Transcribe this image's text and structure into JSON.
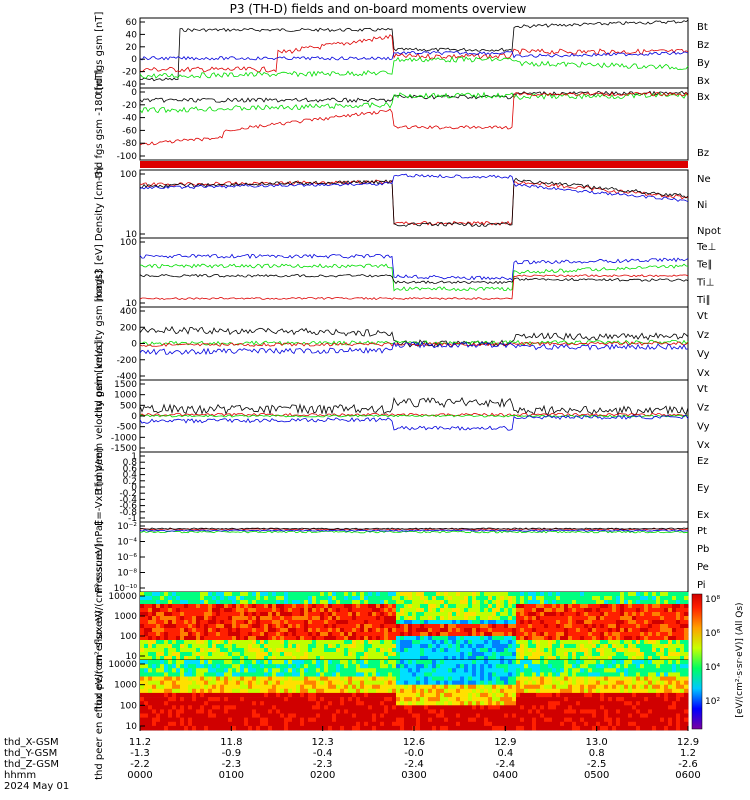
{
  "title": "P3 (TH-D) fields and on-board moments overview",
  "colors": {
    "black": "#000000",
    "red": "#dd0000",
    "green": "#00dd00",
    "blue": "#0000dd"
  },
  "chart_data": [
    {
      "type": "line",
      "ylabel": "thd fgs gsm [nT]",
      "ylim": [
        -50,
        60
      ],
      "yticks": [
        "60",
        "40",
        "20",
        "0",
        "-20",
        "-40"
      ],
      "series": [
        {
          "name": "Bt",
          "color": "black"
        },
        {
          "name": "Bz",
          "color": "red"
        },
        {
          "name": "By",
          "color": "green"
        },
        {
          "name": "Bx",
          "color": "blue"
        }
      ]
    },
    {
      "type": "line",
      "ylabel": "thd fgs gsm -180 [nT]",
      "ylim": [
        -110,
        5
      ],
      "yticks": [
        "0",
        "-20",
        "-40",
        "-60",
        "-80",
        "-100"
      ],
      "series": [
        {
          "name": "Bx",
          "color": "black"
        },
        {
          "name": "Bz",
          "color": "green"
        }
      ]
    },
    {
      "type": "line",
      "ylabel": "Density [cm-3]",
      "scale": "log",
      "yticks": [
        "100",
        "10"
      ],
      "series": [
        {
          "name": "Ne",
          "color": "red"
        },
        {
          "name": "Ni",
          "color": "black"
        },
        {
          "name": "Npot",
          "color": "blue"
        }
      ]
    },
    {
      "type": "line",
      "ylabel": "magt3 [eV]",
      "scale": "log",
      "yticks": [
        "100",
        "10"
      ],
      "series": [
        {
          "name": "Te⊥",
          "color": "red"
        },
        {
          "name": "Te∥",
          "color": "black"
        },
        {
          "name": "Ti⊥",
          "color": "blue"
        },
        {
          "name": "Ti∥",
          "color": "green"
        }
      ]
    },
    {
      "type": "line",
      "ylabel": "thd peim velocity gsm [km/s]",
      "ylim": [
        -400,
        400
      ],
      "yticks": [
        "400",
        "200",
        "0",
        "-200",
        "-400"
      ],
      "series": [
        {
          "name": "Vt",
          "color": "black"
        },
        {
          "name": "Vz",
          "color": "red"
        },
        {
          "name": "Vy",
          "color": "green"
        },
        {
          "name": "Vx",
          "color": "blue"
        }
      ]
    },
    {
      "type": "line",
      "ylabel": "thd peem velocity gsm [km/s]",
      "ylim": [
        -1500,
        1500
      ],
      "yticks": [
        "1500",
        "1000",
        "500",
        "0",
        "-500",
        "-1000",
        "-1500"
      ],
      "series": [
        {
          "name": "Vt",
          "color": "black"
        },
        {
          "name": "Vz",
          "color": "red"
        },
        {
          "name": "Vy",
          "color": "green"
        },
        {
          "name": "Vx",
          "color": "blue"
        }
      ]
    },
    {
      "type": "line",
      "ylabel": "E=-VxB [mV/m]",
      "ylim": [
        -1,
        1
      ],
      "yticks": [
        "1",
        "0.8",
        "0.6",
        "0.4",
        "0.2",
        "0",
        "-0.2",
        "-0.4",
        "-0.6",
        "-0.8",
        "-1"
      ],
      "series": [
        {
          "name": "Ez",
          "color": "red"
        },
        {
          "name": "Ey",
          "color": "green"
        },
        {
          "name": "Ex",
          "color": "blue"
        }
      ]
    },
    {
      "type": "line",
      "ylabel": "Pressure [nPa]",
      "scale": "log",
      "yticks": [
        "10⁻²",
        "10⁻⁴",
        "10⁻⁶",
        "10⁻⁸",
        "10⁻¹⁰"
      ],
      "series": [
        {
          "name": "Pt",
          "color": "black"
        },
        {
          "name": "Pb",
          "color": "red"
        },
        {
          "name": "Pe",
          "color": "green"
        },
        {
          "name": "Pi",
          "color": "blue"
        }
      ]
    },
    {
      "type": "heatmap",
      "ylabel": "thd peir en eflux eV/(cm²·s·sr·eV)",
      "scale": "log",
      "yticks": [
        "10000",
        "1000",
        "100",
        "10"
      ]
    },
    {
      "type": "heatmap",
      "ylabel": "thd peer en eflux eV/(cm²·s·sr·eV)",
      "scale": "log",
      "yticks": [
        "10000",
        "1000",
        "100",
        "10"
      ]
    }
  ],
  "colorbar": {
    "label": "[eV/(cm²·s·sr·eV)] (All Qs)",
    "ticks": [
      "10⁸",
      "10⁶",
      "10⁴",
      "10²"
    ]
  },
  "xaxis": {
    "row_labels": [
      "thd_X-GSM",
      "thd_Y-GSM",
      "thd_Z-GSM",
      "hhmm",
      "2024 May 01"
    ],
    "columns": [
      [
        "11.2",
        "-1.3",
        "-2.2",
        "0000"
      ],
      [
        "11.8",
        "-0.9",
        "-2.3",
        "0100"
      ],
      [
        "12.3",
        "-0.4",
        "-2.3",
        "0200"
      ],
      [
        "12.6",
        "-0.0",
        "-2.4",
        "0300"
      ],
      [
        "12.9",
        "0.4",
        "-2.4",
        "0400"
      ],
      [
        "13.0",
        "0.8",
        "-2.5",
        "0500"
      ],
      [
        "12.9",
        "1.2",
        "-2.6",
        "0600"
      ]
    ]
  }
}
